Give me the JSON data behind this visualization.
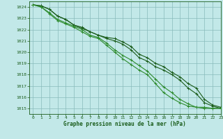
{
  "title": "Graphe pression niveau de la mer (hPa)",
  "bg_color": "#c2e8e8",
  "grid_color": "#88bbbb",
  "line_color_dark": "#1a5c1a",
  "line_color_mid": "#2d8b2d",
  "xlim": [
    -0.5,
    23
  ],
  "ylim": [
    1014.5,
    1024.5
  ],
  "yticks": [
    1015,
    1016,
    1017,
    1018,
    1019,
    1020,
    1021,
    1022,
    1023,
    1024
  ],
  "xticks": [
    0,
    1,
    2,
    3,
    4,
    5,
    6,
    7,
    8,
    9,
    10,
    11,
    12,
    13,
    14,
    15,
    16,
    17,
    18,
    19,
    20,
    21,
    22,
    23
  ],
  "series": [
    [
      1024.2,
      1024.1,
      1023.8,
      1023.2,
      1022.9,
      1022.4,
      1022.1,
      1021.8,
      1021.5,
      1021.3,
      1021.2,
      1020.9,
      1020.5,
      1019.8,
      1019.5,
      1019.0,
      1018.7,
      1018.2,
      1017.8,
      1017.2,
      1016.8,
      1015.8,
      1015.3,
      1015.1
    ],
    [
      1024.2,
      1024.1,
      1023.8,
      1023.2,
      1022.9,
      1022.4,
      1022.2,
      1021.8,
      1021.5,
      1021.2,
      1021.0,
      1020.7,
      1020.2,
      1019.5,
      1019.2,
      1018.7,
      1018.4,
      1018.0,
      1017.5,
      1016.8,
      1016.3,
      1015.5,
      1015.2,
      1015.0
    ],
    [
      1024.2,
      1024.0,
      1023.5,
      1022.9,
      1022.6,
      1022.3,
      1022.0,
      1021.5,
      1021.3,
      1020.8,
      1020.2,
      1019.7,
      1019.3,
      1018.8,
      1018.3,
      1017.6,
      1016.9,
      1016.4,
      1015.8,
      1015.4,
      1015.1,
      1015.1,
      1015.0,
      1015.0
    ],
    [
      1024.2,
      1024.0,
      1023.4,
      1022.8,
      1022.5,
      1022.2,
      1021.8,
      1021.4,
      1021.2,
      1020.6,
      1020.0,
      1019.4,
      1018.9,
      1018.4,
      1018.0,
      1017.2,
      1016.4,
      1015.9,
      1015.5,
      1015.2,
      1015.1,
      1015.0,
      1015.0,
      1015.0
    ]
  ]
}
